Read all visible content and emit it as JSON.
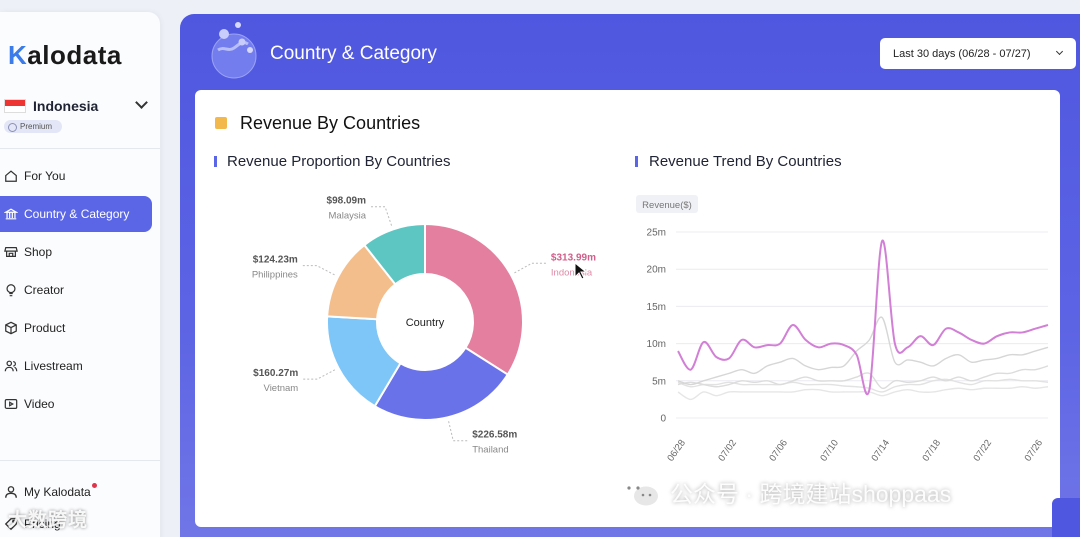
{
  "sidebar": {
    "logo": "alodata",
    "logo_k": "K",
    "country": "Indonesia",
    "premium": "Premium",
    "items": [
      {
        "label": "For You",
        "icon": "home-icon"
      },
      {
        "label": "Country & Category",
        "icon": "bank-icon",
        "active": true
      },
      {
        "label": "Shop",
        "icon": "store-icon"
      },
      {
        "label": "Creator",
        "icon": "bulb-icon"
      },
      {
        "label": "Product",
        "icon": "box-icon"
      },
      {
        "label": "Livestream",
        "icon": "people-icon"
      },
      {
        "label": "Video",
        "icon": "video-icon"
      }
    ],
    "bottom": [
      {
        "label": "My Kalodata",
        "icon": "user-icon"
      },
      {
        "label": "Pricing",
        "icon": "tag-icon"
      }
    ],
    "watermark": "大数跨境"
  },
  "header": {
    "title": "Country & Category",
    "date_range": "Last 30 days (06/28 - 07/27)"
  },
  "card": {
    "title": "Revenue By Countries",
    "pie_title": "Revenue Proportion By Countries",
    "trend_title": "Revenue Trend By Countries"
  },
  "watermark_right": "公众号 · 跨境建站shoppaas",
  "colors": {
    "accent": "#5a66e6",
    "indonesia": "#e47f9f",
    "thailand": "#6a72ea",
    "vietnam": "#7ec5f8",
    "philippines": "#f4be8c",
    "malaysia": "#5ec6c2"
  },
  "chart_data": [
    {
      "type": "pie",
      "center_label": "Country",
      "slices": [
        {
          "name": "Indonesia",
          "value": 313.99,
          "label": "$313.99m",
          "color": "#e47f9f"
        },
        {
          "name": "Thailand",
          "value": 226.58,
          "label": "$226.58m",
          "color": "#6a72ea"
        },
        {
          "name": "Vietnam",
          "value": 160.27,
          "label": "$160.27m",
          "color": "#7ec5f8"
        },
        {
          "name": "Philippines",
          "value": 124.23,
          "label": "$124.23m",
          "color": "#f4be8c"
        },
        {
          "name": "Malaysia",
          "value": 98.09,
          "label": "$98.09m",
          "color": "#5ec6c2"
        }
      ]
    },
    {
      "type": "line",
      "ylabel": "Revenue($)",
      "ylim": [
        0,
        25
      ],
      "yticks": [
        {
          "value": 0,
          "label": "0"
        },
        {
          "value": 5,
          "label": "5m"
        },
        {
          "value": 10,
          "label": "10m"
        },
        {
          "value": 15,
          "label": "15m"
        },
        {
          "value": 20,
          "label": "20m"
        },
        {
          "value": 25,
          "label": "25m"
        }
      ],
      "x": [
        "06/28",
        "06/29",
        "06/30",
        "07/01",
        "07/02",
        "07/03",
        "07/04",
        "07/05",
        "07/06",
        "07/07",
        "07/08",
        "07/09",
        "07/10",
        "07/11",
        "07/12",
        "07/13",
        "07/14",
        "07/15",
        "07/16",
        "07/17",
        "07/18",
        "07/19",
        "07/20",
        "07/21",
        "07/22",
        "07/23",
        "07/24",
        "07/25",
        "07/26",
        "07/27"
      ],
      "xtick_labels": [
        "06/28",
        "07/02",
        "07/06",
        "07/10",
        "07/14",
        "07/18",
        "07/22",
        "07/26"
      ],
      "grid": true,
      "series": [
        {
          "color": "#d27fd6",
          "highlight": true,
          "values": [
            9,
            6.5,
            10.2,
            8.2,
            8,
            10.5,
            9.5,
            9.8,
            10,
            12.5,
            10.5,
            9.5,
            10,
            9.8,
            8.5,
            3.8,
            23.8,
            10,
            9.5,
            11,
            9.8,
            12,
            11.5,
            10.5,
            10,
            11,
            11.5,
            11.5,
            12,
            12.5
          ]
        },
        {
          "color": "#d6d6d6",
          "values": [
            5,
            4.5,
            5,
            5.5,
            6,
            6.5,
            6,
            7,
            7.5,
            8,
            7,
            6.5,
            6.8,
            7,
            9,
            10.5,
            13.5,
            7.5,
            7.8,
            7.5,
            7,
            8,
            8.5,
            7.5,
            7.8,
            8,
            8.5,
            8.5,
            9,
            9.5
          ]
        },
        {
          "color": "#dcdcdc",
          "values": [
            4.5,
            4.8,
            4.5,
            4.2,
            4.5,
            5,
            4.8,
            5,
            4.5,
            5,
            5.5,
            5,
            5,
            5,
            5.5,
            6,
            4,
            5,
            4.8,
            5,
            5.5,
            5,
            5.5,
            5,
            5.5,
            6,
            6,
            6.5,
            6.5,
            7
          ]
        },
        {
          "color": "#e2e2e2",
          "values": [
            4.8,
            4.2,
            4.5,
            4.5,
            4.8,
            4.5,
            4.5,
            4.5,
            4.5,
            4.8,
            4.5,
            4.5,
            4.5,
            4.3,
            4.2,
            4,
            3.5,
            4.2,
            4.5,
            4.5,
            5,
            5.2,
            4.8,
            4.5,
            5,
            5,
            5.2,
            5,
            5,
            4.8
          ]
        },
        {
          "color": "#e6e6e6",
          "values": [
            3.5,
            2.5,
            3.5,
            3,
            3.5,
            3.5,
            3.5,
            3.5,
            3.5,
            3.5,
            3.8,
            3.8,
            3.5,
            3.5,
            3.5,
            3.5,
            3,
            3.5,
            3.8,
            3.5,
            3.5,
            3.8,
            4,
            3.8,
            4,
            4,
            4,
            4.2,
            4,
            4.2
          ]
        }
      ]
    }
  ]
}
